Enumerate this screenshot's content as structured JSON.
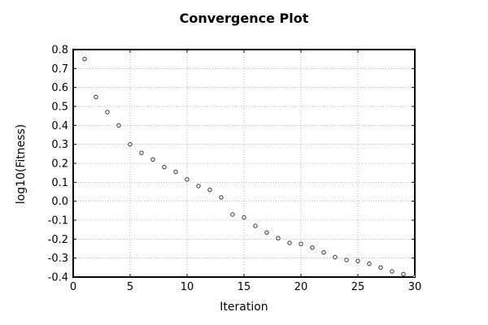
{
  "chart_data": {
    "type": "scatter",
    "title": "Convergence Plot",
    "xlabel": "Iteration",
    "ylabel": "log10(Fitness)",
    "xlim": [
      0,
      30
    ],
    "ylim": [
      -0.4,
      0.8
    ],
    "x_ticks": [
      0,
      5,
      10,
      15,
      20,
      25,
      30
    ],
    "x_tick_labels": [
      "0",
      "5",
      "10",
      "15",
      "20",
      "25",
      "30"
    ],
    "y_ticks": [
      0.8,
      0.7,
      0.6,
      0.5,
      0.4,
      0.3,
      0.2,
      0.1,
      0.0,
      -0.1,
      -0.2,
      -0.3,
      -0.4
    ],
    "y_tick_labels": [
      "0.8",
      "0.7",
      "0.6",
      "0.5",
      "0.4",
      "0.3",
      "0.2",
      "0.1",
      "0.0",
      "-0.1",
      "-0.2",
      "-0.3",
      "-0.4"
    ],
    "grid": "dotted",
    "legend": "none",
    "marker": {
      "shape": "open-circle",
      "stroke": "#333333",
      "fill": "#ffffff",
      "radius": 2.2
    },
    "colors": {
      "frame": "#000000",
      "grid": "#bdbdbd",
      "background": "#ffffff",
      "text": "#000000"
    },
    "series": [
      {
        "name": "fitness",
        "x": [
          1,
          2,
          3,
          4,
          5,
          6,
          7,
          8,
          9,
          10,
          11,
          12,
          13,
          14,
          15,
          16,
          17,
          18,
          19,
          20,
          21,
          22,
          23,
          24,
          25,
          26,
          27,
          28,
          29,
          30
        ],
        "y": [
          0.75,
          0.55,
          0.47,
          0.4,
          0.3,
          0.255,
          0.22,
          0.18,
          0.155,
          0.115,
          0.08,
          0.06,
          0.02,
          -0.07,
          -0.085,
          -0.13,
          -0.165,
          -0.195,
          -0.22,
          -0.225,
          -0.245,
          -0.27,
          -0.295,
          -0.31,
          -0.315,
          -0.33,
          -0.35,
          -0.37,
          -0.385,
          -0.4
        ]
      }
    ]
  }
}
